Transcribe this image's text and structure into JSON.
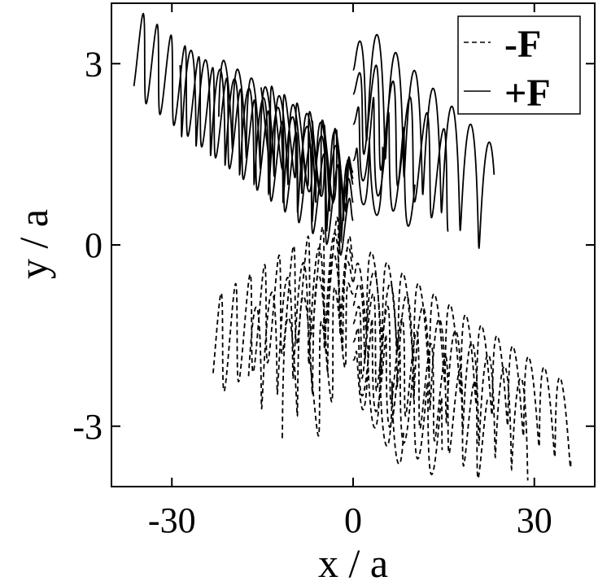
{
  "chart_data": {
    "type": "line",
    "xlabel": "x / a",
    "ylabel": "y / a",
    "xlim": [
      -40,
      40
    ],
    "ylim": [
      -4,
      4
    ],
    "xticks": [
      {
        "value": -30,
        "label": "-30"
      },
      {
        "value": 0,
        "label": "0"
      },
      {
        "value": 30,
        "label": "30"
      }
    ],
    "yticks": [
      {
        "value": 3,
        "label": "3"
      },
      {
        "value": 0,
        "label": "0"
      },
      {
        "value": -3,
        "label": "-3"
      }
    ],
    "grid": false,
    "legend": "top-right",
    "series": [
      {
        "name": "-F",
        "style": "dashed",
        "color": "#000000",
        "strands": [
          {
            "x_start": 0,
            "x_end": -23,
            "y_start": -0.2,
            "y_end": -1.7,
            "amplitude": 0.85,
            "period": 2.4
          },
          {
            "x_start": 0,
            "x_end": -17,
            "y_start": -0.4,
            "y_end": -2.0,
            "amplitude": 0.9,
            "period": 2.6
          },
          {
            "x_start": 0,
            "x_end": -12,
            "y_start": -0.6,
            "y_end": -2.3,
            "amplitude": 0.9,
            "period": 2.5
          },
          {
            "x_start": 0,
            "x_end": -7,
            "y_start": -0.8,
            "y_end": -2.6,
            "amplitude": 0.8,
            "period": 2.2
          },
          {
            "x_start": 0,
            "x_end": 36,
            "y_start": -0.6,
            "y_end": -3.0,
            "amplitude": 0.7,
            "period": 2.6
          },
          {
            "x_start": 0,
            "x_end": 29,
            "y_start": -1.0,
            "y_end": -3.1,
            "amplitude": 0.8,
            "period": 2.7
          },
          {
            "x_start": 0,
            "x_end": 22,
            "y_start": -1.3,
            "y_end": -3.2,
            "amplitude": 0.75,
            "period": 2.4
          },
          {
            "x_start": 0,
            "x_end": 15,
            "y_start": -1.6,
            "y_end": -3.3,
            "amplitude": 0.7,
            "period": 2.3
          },
          {
            "x_start": 0,
            "x_end": 8,
            "y_start": -1.9,
            "y_end": -3.1,
            "amplitude": 0.6,
            "period": 2.0
          }
        ]
      },
      {
        "name": "+F",
        "style": "solid",
        "color": "#000000",
        "strands": [
          {
            "x_start": 0,
            "x_end": -36,
            "y_start": 0.4,
            "y_end": 3.2,
            "amplitude": 0.7,
            "period": 2.3
          },
          {
            "x_start": 0,
            "x_end": -29,
            "y_start": 0.7,
            "y_end": 2.6,
            "amplitude": 0.75,
            "period": 2.4
          },
          {
            "x_start": 0,
            "x_end": -22,
            "y_start": 1.0,
            "y_end": 2.4,
            "amplitude": 0.7,
            "period": 2.3
          },
          {
            "x_start": 0,
            "x_end": -15,
            "y_start": 1.1,
            "y_end": 2.1,
            "amplitude": 0.65,
            "period": 2.1
          },
          {
            "x_start": 0,
            "x_end": -8,
            "y_start": 1.2,
            "y_end": 1.5,
            "amplitude": 0.6,
            "period": 2.0
          },
          {
            "x_start": 0,
            "x_end": 23,
            "y_start": 2.9,
            "y_end": 0.7,
            "amplitude": 0.95,
            "period": 3.1
          },
          {
            "x_start": 0,
            "x_end": 16,
            "y_start": 2.5,
            "y_end": 1.0,
            "amplitude": 0.8,
            "period": 2.8
          },
          {
            "x_start": 0,
            "x_end": 10,
            "y_start": 2.0,
            "y_end": 1.0,
            "amplitude": 0.75,
            "period": 2.5
          },
          {
            "x_start": 0,
            "x_end": 5,
            "y_start": 1.4,
            "y_end": 1.0,
            "amplitude": 0.6,
            "period": 2.2
          }
        ]
      }
    ]
  }
}
